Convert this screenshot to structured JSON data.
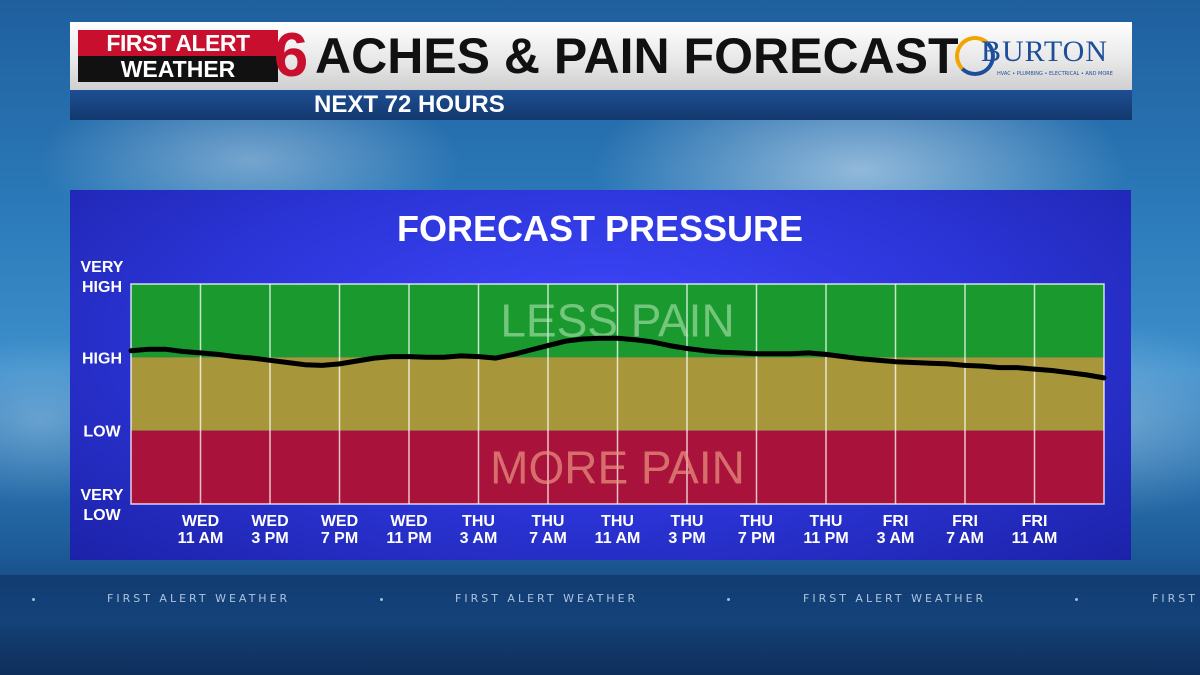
{
  "header": {
    "logo_line1": "FIRST ALERT",
    "logo_line2": "WEATHER",
    "logo_channel": "6",
    "title": "ACHES & PAIN FORECAST",
    "subtitle": "NEXT 72 HOURS",
    "sponsor_name": "BURTON",
    "sponsor_tagline": "HVAC • PLUMBING • ELECTRICAL • AND MORE"
  },
  "ticker": {
    "items": [
      "FIRST ALERT WEATHER",
      "FIRST ALERT WEATHER",
      "FIRST ALERT WEATHER",
      "FIRST"
    ]
  },
  "colors": {
    "less_pain_zone": "#1a9a2e",
    "mid_zone": "#a7973a",
    "more_pain_zone": "#a8123b",
    "line": "#000000",
    "panel": "#2f39e0"
  },
  "chart_data": {
    "type": "line",
    "title": "FORECAST PRESSURE",
    "y_categories": [
      {
        "label": [
          "VERY",
          "HIGH"
        ],
        "level": 3
      },
      {
        "label": [
          "HIGH"
        ],
        "level": 2
      },
      {
        "label": [
          "LOW"
        ],
        "level": 1
      },
      {
        "label": [
          "VERY",
          "LOW"
        ],
        "level": 0
      }
    ],
    "ylim": [
      0,
      3
    ],
    "zones": [
      {
        "label": "LESS PAIN",
        "from": 2,
        "to": 3,
        "color": "#1a9a2e"
      },
      {
        "label": "",
        "from": 1,
        "to": 2,
        "color": "#a7973a"
      },
      {
        "label": "MORE PAIN",
        "from": 0,
        "to": 1,
        "color": "#a8123b"
      }
    ],
    "x_ticks": [
      {
        "day": "WED",
        "time": "11 AM",
        "hour": 0
      },
      {
        "day": "WED",
        "time": "3 PM",
        "hour": 4
      },
      {
        "day": "WED",
        "time": "7 PM",
        "hour": 8
      },
      {
        "day": "WED",
        "time": "11 PM",
        "hour": 12
      },
      {
        "day": "THU",
        "time": "3 AM",
        "hour": 16
      },
      {
        "day": "THU",
        "time": "7 AM",
        "hour": 20
      },
      {
        "day": "THU",
        "time": "11 AM",
        "hour": 24
      },
      {
        "day": "THU",
        "time": "3 PM",
        "hour": 28
      },
      {
        "day": "THU",
        "time": "7 PM",
        "hour": 32
      },
      {
        "day": "THU",
        "time": "11 PM",
        "hour": 36
      },
      {
        "day": "FRI",
        "time": "3 AM",
        "hour": 40
      },
      {
        "day": "FRI",
        "time": "7 AM",
        "hour": 44
      },
      {
        "day": "FRI",
        "time": "11 AM",
        "hour": 48
      }
    ],
    "x_range_hours": [
      -4,
      52
    ],
    "series": [
      {
        "x_hours": [
          -4,
          -3,
          -2,
          -1,
          0,
          1,
          2,
          3,
          4,
          5,
          6,
          7,
          8,
          9,
          10,
          11,
          12,
          13,
          14,
          15,
          16,
          17,
          18,
          19,
          20,
          21,
          22,
          23,
          24,
          25,
          26,
          27,
          28,
          29,
          30,
          31,
          32,
          33,
          34,
          35,
          36,
          37,
          38,
          39,
          40,
          41,
          42,
          43,
          44,
          45,
          46,
          47,
          48,
          49,
          50,
          51,
          52
        ],
        "values": [
          2.09,
          2.11,
          2.11,
          2.08,
          2.06,
          2.04,
          2.01,
          1.99,
          1.96,
          1.93,
          1.9,
          1.89,
          1.91,
          1.95,
          1.99,
          2.01,
          2.01,
          2.0,
          2.0,
          2.02,
          2.01,
          1.99,
          2.04,
          2.1,
          2.16,
          2.22,
          2.25,
          2.26,
          2.26,
          2.24,
          2.21,
          2.16,
          2.12,
          2.09,
          2.07,
          2.06,
          2.05,
          2.05,
          2.05,
          2.06,
          2.04,
          2.01,
          1.98,
          1.96,
          1.94,
          1.93,
          1.92,
          1.91,
          1.89,
          1.88,
          1.86,
          1.86,
          1.84,
          1.82,
          1.79,
          1.76,
          1.72
        ]
      }
    ]
  }
}
